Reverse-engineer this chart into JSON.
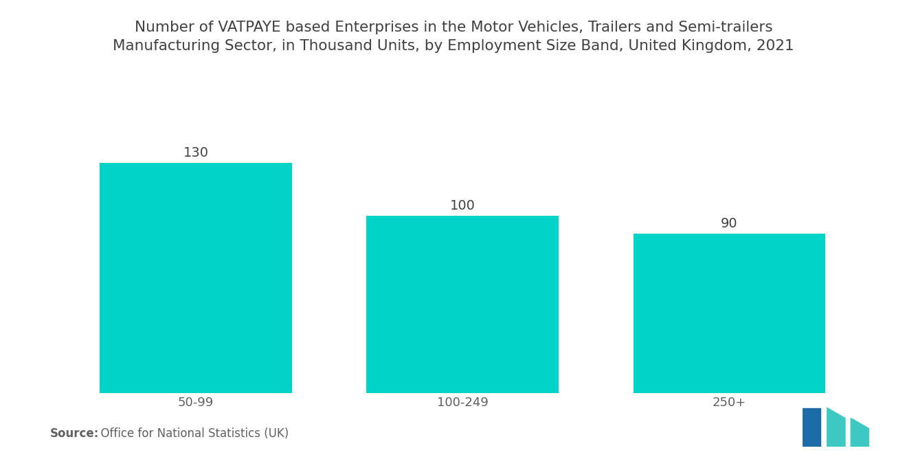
{
  "title_line1": "Number of VATPAYE based Enterprises in the Motor Vehicles, Trailers and Semi-trailers",
  "title_line2": "Manufacturing Sector, in Thousand Units, by Employment Size Band, United Kingdom, 2021",
  "categories": [
    "50-99",
    "100-249",
    "250+"
  ],
  "values": [
    130,
    100,
    90
  ],
  "bar_color": "#00D4C8",
  "background_color": "#FFFFFF",
  "title_color": "#404040",
  "label_color": "#606060",
  "value_color": "#404040",
  "source_bold": "Source:",
  "source_rest": "  Office for National Statistics (UK)",
  "ylim": [
    0,
    155
  ],
  "title_fontsize": 15.5,
  "tick_fontsize": 13,
  "value_fontsize": 14,
  "source_fontsize": 12,
  "bar_width": 0.72
}
